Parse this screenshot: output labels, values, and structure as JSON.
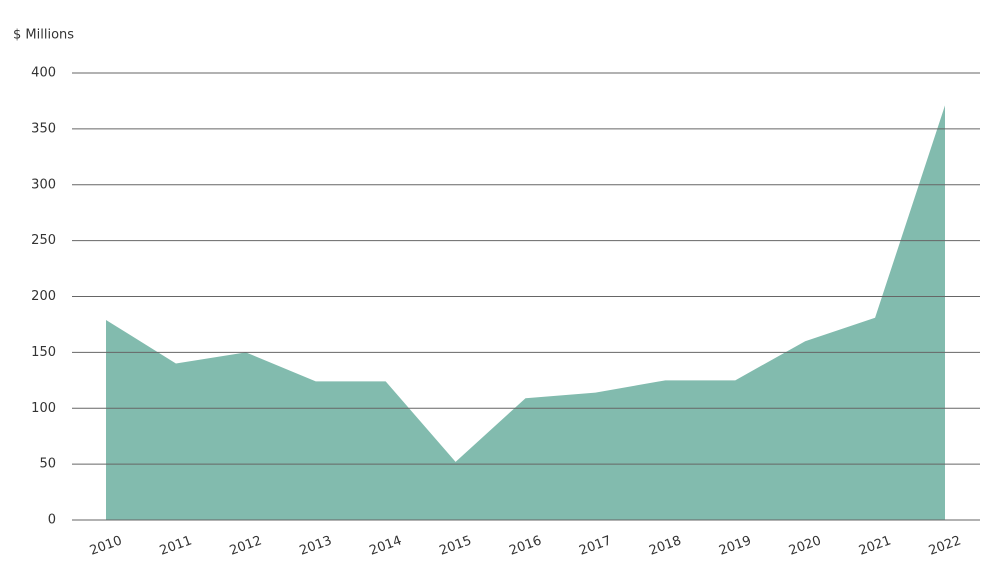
{
  "chart_data": {
    "type": "area",
    "y_axis_label": "$ Millions",
    "categories": [
      "2010",
      "2011",
      "2012",
      "2013",
      "2014",
      "2015",
      "2016",
      "2017",
      "2018",
      "2019",
      "2020",
      "2021",
      "2022"
    ],
    "values": [
      179,
      140,
      150,
      124,
      124,
      52,
      109,
      114,
      125,
      125,
      160,
      181,
      371
    ],
    "color": "#82bbae",
    "ylim": [
      0,
      400
    ],
    "yticks": [
      0,
      50,
      100,
      150,
      200,
      250,
      300,
      350,
      400
    ],
    "grid": true
  }
}
